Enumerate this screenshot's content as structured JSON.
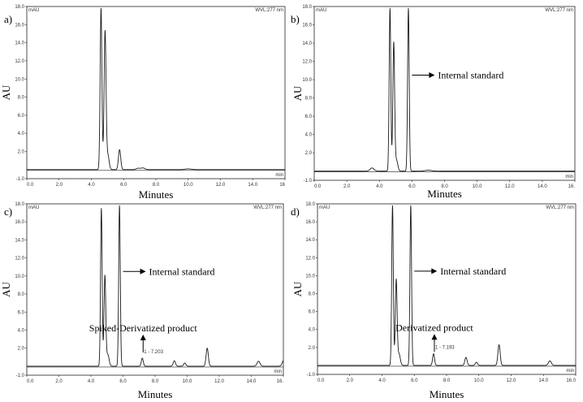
{
  "chart_data": [
    {
      "panel": "a)",
      "type": "line",
      "unit_label": "mAU",
      "wavelength_label": "WVL:277 nm",
      "time_unit": "min",
      "xlabel": "Minutes",
      "ylabel": "AU",
      "xlim": [
        0,
        16
      ],
      "ylim": [
        -1,
        18
      ],
      "x_ticks": [
        "0.0",
        "2.0",
        "4.0",
        "6.0",
        "8.0",
        "10.0",
        "12.0",
        "14.0",
        "16"
      ],
      "y_ticks": [
        "-1.0",
        "2.0",
        "4.0",
        "6.0",
        "8.0",
        "10.0",
        "12.0",
        "14.0",
        "16.0",
        "18.0"
      ],
      "baseline": 0.0,
      "peaks": [
        {
          "x": 4.6,
          "y": 17.8,
          "w": 0.055
        },
        {
          "x": 4.85,
          "y": 15.2,
          "w": 0.06
        },
        {
          "x": 5.02,
          "y": 1.6,
          "w": 0.08
        },
        {
          "x": 5.75,
          "y": 2.2,
          "w": 0.07
        },
        {
          "x": 6.9,
          "y": 0.15,
          "w": 0.12
        },
        {
          "x": 7.2,
          "y": 0.18,
          "w": 0.12
        },
        {
          "x": 10.0,
          "y": 0.08,
          "w": 0.2
        }
      ],
      "annotations": []
    },
    {
      "panel": "b)",
      "type": "line",
      "unit_label": "mAU",
      "wavelength_label": "WVL:277 nm",
      "time_unit": "min",
      "xlabel": "Minutes",
      "ylabel": "AU",
      "xlim": [
        0,
        16
      ],
      "ylim": [
        -1,
        18
      ],
      "x_ticks": [
        "0.0",
        "2.0",
        "4.0",
        "6.0",
        "8.0",
        "10.0",
        "12.0",
        "14.0",
        "16."
      ],
      "y_ticks": [
        "-1.0",
        "2.0",
        "4.0",
        "6.0",
        "8.0",
        "10.0",
        "12.0",
        "14.0",
        "16.0",
        "18.0"
      ],
      "baseline": 0.0,
      "peaks": [
        {
          "x": 3.55,
          "y": 0.35,
          "w": 0.12
        },
        {
          "x": 4.65,
          "y": 17.8,
          "w": 0.05
        },
        {
          "x": 4.88,
          "y": 14.0,
          "w": 0.055
        },
        {
          "x": 5.05,
          "y": 1.2,
          "w": 0.08
        },
        {
          "x": 5.78,
          "y": 17.8,
          "w": 0.05
        },
        {
          "x": 7.0,
          "y": 0.1,
          "w": 0.2
        }
      ],
      "annotations": [
        {
          "text": "Internal standard",
          "x": 5.8,
          "y": 10.5,
          "arrow": "right"
        }
      ]
    },
    {
      "panel": "c)",
      "type": "line",
      "unit_label": "mAU",
      "wavelength_label": "WVL:277 nm",
      "time_unit": "min",
      "xlabel": "Minutes",
      "ylabel": "AU",
      "xlim": [
        0,
        16
      ],
      "ylim": [
        -1,
        18
      ],
      "x_ticks": [
        "0.0",
        "2.0",
        "4.0",
        "6.0",
        "8.0",
        "10.0",
        "12.0",
        "14.0",
        "16."
      ],
      "y_ticks": [
        "-1.0",
        "2.0",
        "4.0",
        "6.0",
        "8.0",
        "10.0",
        "12.0",
        "14.0",
        "16.0",
        "18.0"
      ],
      "baseline": 0.0,
      "peaks": [
        {
          "x": 4.65,
          "y": 17.5,
          "w": 0.05
        },
        {
          "x": 4.87,
          "y": 10.0,
          "w": 0.055
        },
        {
          "x": 5.05,
          "y": 1.3,
          "w": 0.08
        },
        {
          "x": 5.78,
          "y": 17.8,
          "w": 0.05
        },
        {
          "x": 7.203,
          "y": 0.9,
          "w": 0.06
        },
        {
          "x": 9.2,
          "y": 0.6,
          "w": 0.07
        },
        {
          "x": 9.85,
          "y": 0.35,
          "w": 0.07
        },
        {
          "x": 11.25,
          "y": 2.0,
          "w": 0.07
        },
        {
          "x": 14.45,
          "y": 0.55,
          "w": 0.09
        },
        {
          "x": 16.0,
          "y": 0.6,
          "w": 0.08
        }
      ],
      "peak_labels": [
        {
          "text": "1 - 7.203",
          "x": 7.203,
          "y": 0.9
        }
      ],
      "annotations": [
        {
          "text": "Internal standard",
          "x": 5.8,
          "y": 10.5,
          "arrow": "right"
        },
        {
          "text": "Spiked-Derivatized product",
          "x": 7.203,
          "y": 3.5,
          "arrow": "up"
        }
      ]
    },
    {
      "panel": "d)",
      "type": "line",
      "unit_label": "mAU",
      "wavelength_label": "WVL:277 nm",
      "time_unit": "min",
      "xlabel": "Minutes",
      "ylabel": "AU",
      "xlim": [
        0,
        16
      ],
      "ylim": [
        -1,
        18
      ],
      "x_ticks": [
        "0.0",
        "2.0",
        "4.0",
        "6.0",
        "8.0",
        "10.0",
        "12.0",
        "14.0",
        "16.0"
      ],
      "y_ticks": [
        "-1.0",
        "2.0",
        "4.0",
        "6.0",
        "8.0",
        "10.0",
        "12.0",
        "14.0",
        "16.0",
        "18.0"
      ],
      "baseline": 0.0,
      "peaks": [
        {
          "x": 4.65,
          "y": 17.8,
          "w": 0.05
        },
        {
          "x": 4.88,
          "y": 9.5,
          "w": 0.055
        },
        {
          "x": 5.05,
          "y": 1.3,
          "w": 0.08
        },
        {
          "x": 5.78,
          "y": 17.8,
          "w": 0.05
        },
        {
          "x": 7.193,
          "y": 1.3,
          "w": 0.06
        },
        {
          "x": 9.2,
          "y": 0.9,
          "w": 0.07
        },
        {
          "x": 9.85,
          "y": 0.35,
          "w": 0.07
        },
        {
          "x": 11.25,
          "y": 2.3,
          "w": 0.07
        },
        {
          "x": 14.4,
          "y": 0.5,
          "w": 0.09
        }
      ],
      "peak_labels": [
        {
          "text": "1 - 7.193",
          "x": 7.193,
          "y": 1.3
        }
      ],
      "annotations": [
        {
          "text": "Internal standard",
          "x": 5.8,
          "y": 10.5,
          "arrow": "right"
        },
        {
          "text": "Derivatized product",
          "x": 7.193,
          "y": 3.5,
          "arrow": "up"
        }
      ]
    }
  ]
}
